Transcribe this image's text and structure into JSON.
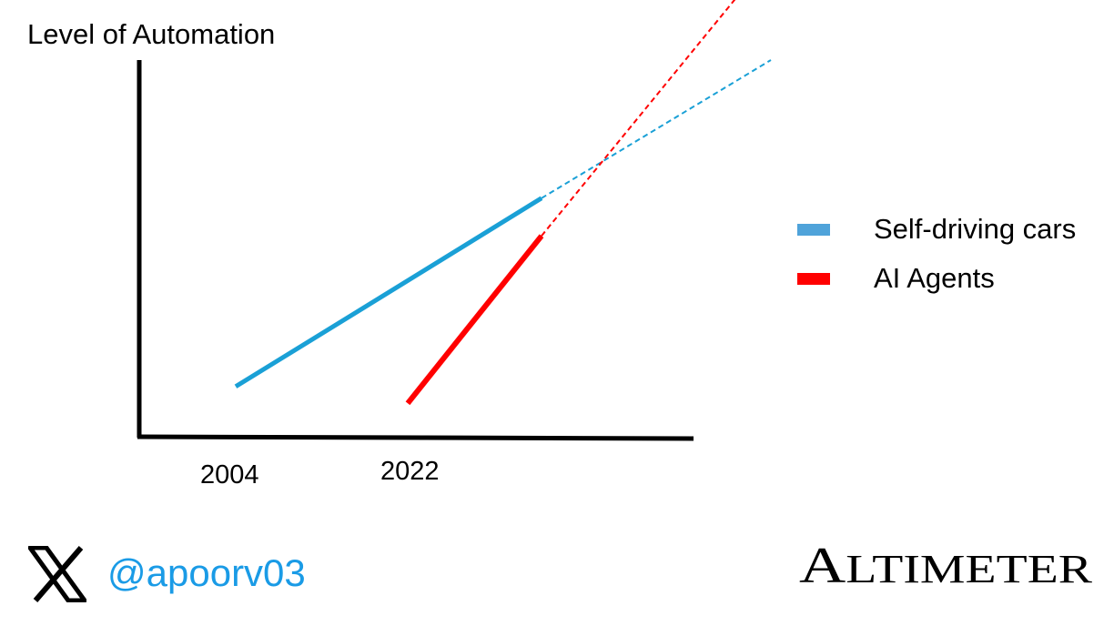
{
  "chart_data": {
    "type": "line",
    "ylabel": "Level of Automation",
    "xlabel": "",
    "x_ticks": [
      "2004",
      "2022"
    ],
    "series": [
      {
        "name": "Self-driving cars",
        "color": "#1AA0D6",
        "x": [
          2004,
          2036
        ],
        "y": [
          12,
          57
        ],
        "projection": {
          "x": [
            2036,
            2060
          ],
          "y": [
            57,
            90
          ]
        }
      },
      {
        "name": "AI Agents",
        "color": "#FF0000",
        "x": [
          2022,
          2036
        ],
        "y": [
          8,
          48
        ],
        "projection": {
          "x": [
            2036,
            2060
          ],
          "y": [
            48,
            115
          ]
        }
      }
    ],
    "legend_position": "right"
  },
  "footer": {
    "handle": "@apoorv03",
    "handle_color": "#1A9BE6",
    "x_logo_icon": "x-logo-icon",
    "brand_logo_text": "ALTIMETER"
  }
}
